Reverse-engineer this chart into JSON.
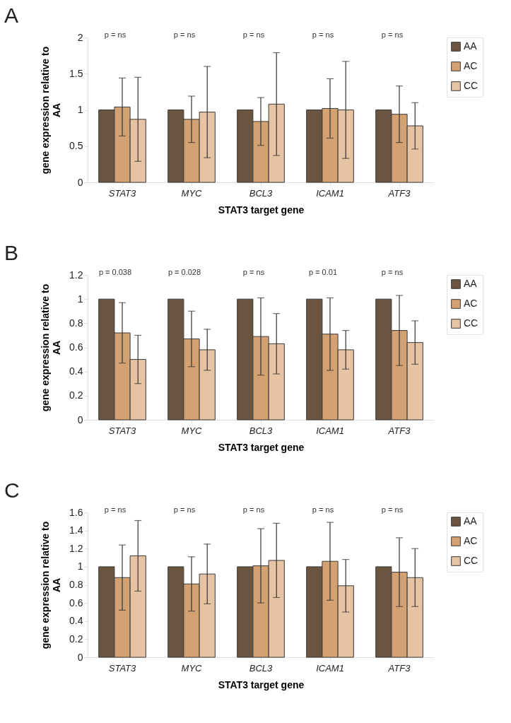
{
  "chart_data": [
    {
      "type": "bar",
      "title": "A",
      "xlabel": "STAT3 target gene",
      "ylabel": "gene expression relative to AA",
      "categories": [
        "STAT3",
        "MYC",
        "BCL3",
        "ICAM1",
        "ATF3"
      ],
      "ylim": [
        0,
        2
      ],
      "yticks": [
        0,
        0.5,
        1,
        1.5,
        2
      ],
      "grid": false,
      "legend": "right",
      "series": [
        {
          "name": "AA",
          "color": "#6b5540",
          "values": [
            1,
            1,
            1,
            1,
            1
          ]
        },
        {
          "name": "AC",
          "color": "#d4a172",
          "values": [
            1.04,
            0.87,
            0.84,
            1.02,
            0.94
          ],
          "errors": [
            0.4,
            0.32,
            0.33,
            0.41,
            0.39
          ]
        },
        {
          "name": "CC",
          "color": "#e6c3a3",
          "values": [
            0.87,
            0.97,
            1.08,
            1.0,
            0.78
          ],
          "errors": [
            0.58,
            0.63,
            0.71,
            0.67,
            0.32
          ]
        }
      ],
      "annotations": [
        "p = ns",
        "p = ns",
        "p = ns",
        "p = ns",
        "p = ns"
      ]
    },
    {
      "type": "bar",
      "title": "B",
      "xlabel": "STAT3 target gene",
      "ylabel": "gene expression relative to AA",
      "categories": [
        "STAT3",
        "MYC",
        "BCL3",
        "ICAM1",
        "ATF3"
      ],
      "ylim": [
        0,
        1.2
      ],
      "yticks": [
        0,
        0.2,
        0.4,
        0.6,
        0.8,
        1,
        1.2
      ],
      "grid": false,
      "legend": "right",
      "series": [
        {
          "name": "AA",
          "color": "#6b5540",
          "values": [
            1,
            1,
            1,
            1,
            1
          ]
        },
        {
          "name": "AC",
          "color": "#d4a172",
          "values": [
            0.72,
            0.67,
            0.69,
            0.71,
            0.74
          ],
          "errors": [
            0.25,
            0.23,
            0.32,
            0.3,
            0.29
          ]
        },
        {
          "name": "CC",
          "color": "#e6c3a3",
          "values": [
            0.5,
            0.58,
            0.63,
            0.58,
            0.64
          ],
          "errors": [
            0.2,
            0.17,
            0.25,
            0.16,
            0.18
          ]
        }
      ],
      "annotations": [
        "p = 0.038",
        "p = 0.028",
        "p = ns",
        "p = 0.01",
        "p = ns"
      ]
    },
    {
      "type": "bar",
      "title": "C",
      "xlabel": "STAT3 target gene",
      "ylabel": "gene expression relative to AA",
      "categories": [
        "STAT3",
        "MYC",
        "BCL3",
        "ICAM1",
        "ATF3"
      ],
      "ylim": [
        0,
        1.6
      ],
      "yticks": [
        0,
        0.2,
        0.4,
        0.6,
        0.8,
        1,
        1.2,
        1.4,
        1.6
      ],
      "grid": false,
      "legend": "right",
      "series": [
        {
          "name": "AA",
          "color": "#6b5540",
          "values": [
            1,
            1,
            1,
            1,
            1
          ]
        },
        {
          "name": "AC",
          "color": "#d4a172",
          "values": [
            0.88,
            0.81,
            1.01,
            1.06,
            0.94
          ],
          "errors": [
            0.36,
            0.3,
            0.41,
            0.43,
            0.38
          ]
        },
        {
          "name": "CC",
          "color": "#e6c3a3",
          "values": [
            1.12,
            0.92,
            1.07,
            0.79,
            0.88
          ],
          "errors": [
            0.39,
            0.33,
            0.41,
            0.29,
            0.32
          ]
        }
      ],
      "annotations": [
        "p = ns",
        "p = ns",
        "p = ns",
        "p = ns",
        "p = ns"
      ]
    }
  ]
}
